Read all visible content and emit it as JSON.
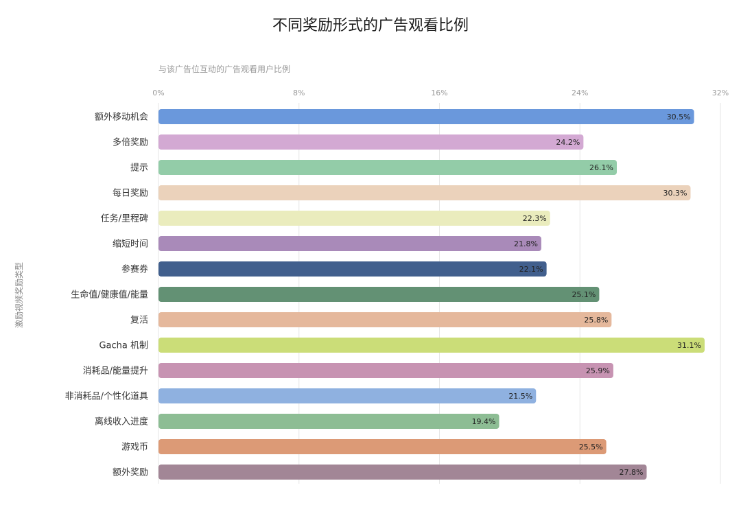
{
  "chart_data": {
    "type": "bar",
    "orientation": "horizontal",
    "title": "不同奖励形式的广告观看比例",
    "xlabel": "与该广告位互动的广告观看用户比例",
    "ylabel": "激励视频奖励类型",
    "xlim": [
      0,
      32
    ],
    "x_ticks": [
      "0%",
      "8%",
      "16%",
      "24%",
      "32%"
    ],
    "x_tick_values": [
      0,
      8,
      16,
      24,
      32
    ],
    "grid": true,
    "legend": "none",
    "categories": [
      "额外移动机会",
      "多倍奖励",
      "提示",
      "每日奖励",
      "任务/里程碑",
      "缩短时间",
      "参赛券",
      "生命值/健康值/能量",
      "复活",
      "Gacha 机制",
      "消耗品/能量提升",
      "非消耗品/个性化道具",
      "离线收入进度",
      "游戏币",
      "额外奖励"
    ],
    "values": [
      30.5,
      24.2,
      26.1,
      30.3,
      22.3,
      21.8,
      22.1,
      25.1,
      25.8,
      31.1,
      25.9,
      21.5,
      19.4,
      25.5,
      27.8
    ],
    "value_labels": [
      "30.5%",
      "24.2%",
      "26.1%",
      "30.3%",
      "22.3%",
      "21.8%",
      "22.1%",
      "25.1%",
      "25.8%",
      "31.1%",
      "25.9%",
      "21.5%",
      "19.4%",
      "25.5%",
      "27.8%"
    ],
    "colors": [
      "#6a98dc",
      "#d3a9d3",
      "#93cca8",
      "#ebd2bb",
      "#eaecbd",
      "#a98ab9",
      "#415f8d",
      "#639174",
      "#e5b89c",
      "#cbdd78",
      "#c793b2",
      "#8fb1e0",
      "#8dbd94",
      "#dc9a76",
      "#a28696"
    ]
  },
  "axis": {
    "grid_color": "#e6e6e6",
    "text_color": "#999999"
  }
}
